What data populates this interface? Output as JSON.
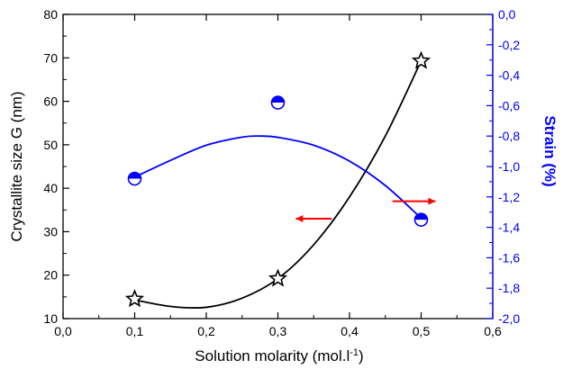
{
  "chart_data": {
    "type": "scatter",
    "xlabel": "Solution molarity (mol.l",
    "xlabel_superscript": "-1",
    "xlabel_suffix": ")",
    "ylabel_left": "Crystallite size G (nm)",
    "ylabel_right": "Strain (%)",
    "xlim": [
      0.0,
      0.6
    ],
    "ylim_left": [
      10,
      80
    ],
    "ylim_right": [
      -2.0,
      0.0
    ],
    "x_ticks": [
      "0,0",
      "0,1",
      "0,2",
      "0,3",
      "0,4",
      "0,5",
      "0,6"
    ],
    "y_left_ticks": [
      "10",
      "20",
      "30",
      "40",
      "50",
      "60",
      "70",
      "80"
    ],
    "y_right_ticks": [
      "0,0",
      "-0,2",
      "-0,4",
      "-0,6",
      "-0,8",
      "-1,0",
      "-1,2",
      "-1,4",
      "-1,6",
      "-1,8",
      "-2,0"
    ],
    "grid": false,
    "series": [
      {
        "axis": "left",
        "marker": "star",
        "color": "#000000",
        "x": [
          0.1,
          0.3,
          0.5
        ],
        "y": [
          14.5,
          19.2,
          69.3
        ],
        "fit_curve": [
          [
            0.1,
            14.3
          ],
          [
            0.15,
            12.8
          ],
          [
            0.2,
            12.6
          ],
          [
            0.25,
            14.7
          ],
          [
            0.3,
            19.2
          ],
          [
            0.35,
            27.0
          ],
          [
            0.4,
            38.0
          ],
          [
            0.45,
            52.0
          ],
          [
            0.5,
            69.3
          ]
        ]
      },
      {
        "axis": "right",
        "marker": "half-filled-circle",
        "color": "#0000ff",
        "x": [
          0.1,
          0.3,
          0.5
        ],
        "y": [
          -1.08,
          -0.58,
          -1.35
        ],
        "fit_curve": [
          [
            0.1,
            -1.07
          ],
          [
            0.15,
            -0.96
          ],
          [
            0.2,
            -0.86
          ],
          [
            0.25,
            -0.807
          ],
          [
            0.275,
            -0.8
          ],
          [
            0.3,
            -0.808
          ],
          [
            0.35,
            -0.86
          ],
          [
            0.4,
            -0.965
          ],
          [
            0.45,
            -1.125
          ],
          [
            0.5,
            -1.34
          ]
        ]
      }
    ],
    "annotations": [
      {
        "type": "arrow",
        "color": "#ff0000",
        "direction": "left",
        "x_from": 0.375,
        "x_to": 0.325,
        "y_left": 33
      },
      {
        "type": "arrow",
        "color": "#ff0000",
        "direction": "right",
        "x_from": 0.46,
        "x_to": 0.52,
        "y_left": 37
      }
    ]
  }
}
